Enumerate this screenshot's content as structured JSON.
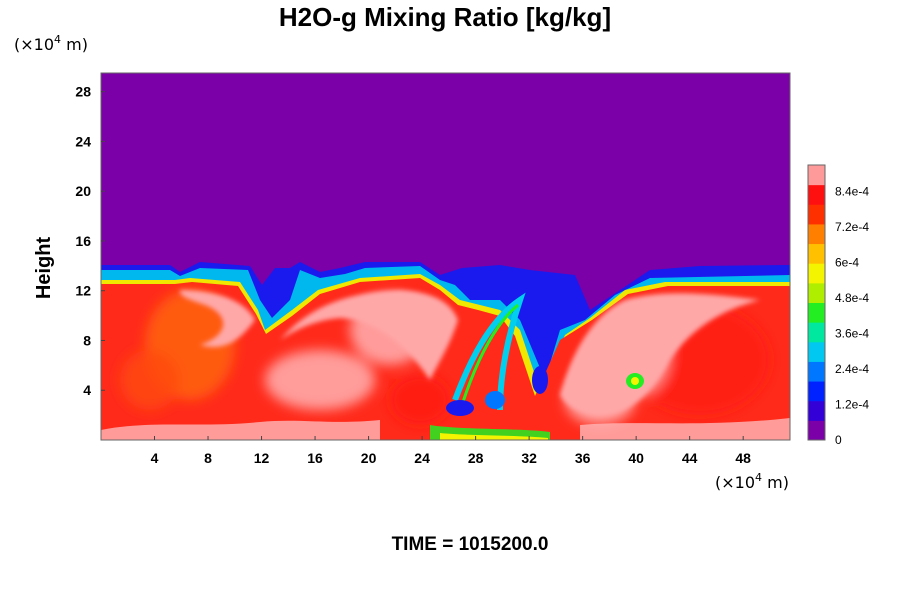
{
  "chart_data": {
    "type": "heatmap",
    "title": "H2O-g Mixing Ratio [kg/kg]",
    "ylabel": "Height",
    "y_unit_prefix": "(×10",
    "y_unit_exp": "4",
    "y_unit_suffix": " m)",
    "x_unit_prefix": "(×10",
    "x_unit_exp": "4",
    "x_unit_suffix": " m)",
    "x_ticks": [
      "4",
      "8",
      "12",
      "16",
      "20",
      "24",
      "28",
      "32",
      "36",
      "40",
      "44",
      "48"
    ],
    "y_ticks": [
      "4",
      "8",
      "12",
      "16",
      "20",
      "24",
      "28"
    ],
    "xlim": [
      0,
      51.5
    ],
    "ylim": [
      0,
      29.5
    ],
    "colorbar": {
      "ticks": [
        "0",
        "1.2e-4",
        "2.4e-4",
        "3.6e-4",
        "4.8e-4",
        "6e-4",
        "7.2e-4",
        "8.4e-4"
      ],
      "tick_values": [
        0,
        0.00012,
        0.00024,
        0.00036,
        0.00048,
        0.0006,
        0.00072,
        0.00084
      ],
      "range": [
        0,
        0.00093
      ],
      "colors": [
        "#7b00a8",
        "#3300d8",
        "#0022ff",
        "#0077ff",
        "#00c8f0",
        "#00e8a0",
        "#22ee22",
        "#b0ee00",
        "#f4f400",
        "#ffc000",
        "#ff8000",
        "#ff3000",
        "#ff1010",
        "#ff9a9a"
      ]
    },
    "top_boundary_height": 13.5,
    "upper_region_value": 0,
    "footer": "TIME = 1015200.0"
  },
  "colors": {
    "dry": "#7b00a8",
    "moist": "#ff2a1a",
    "saturated": "#ffa8a8",
    "background": "#ffffff"
  }
}
